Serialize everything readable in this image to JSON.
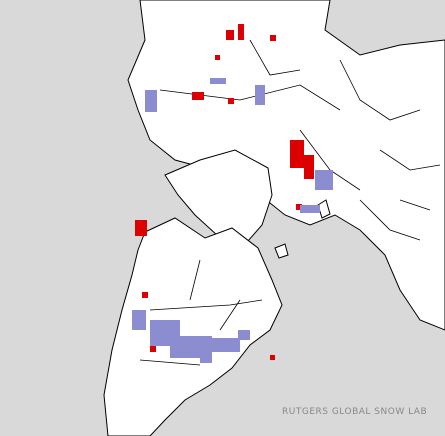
{
  "credit": "RUTGERS GLOBAL SNOW LAB"
}
